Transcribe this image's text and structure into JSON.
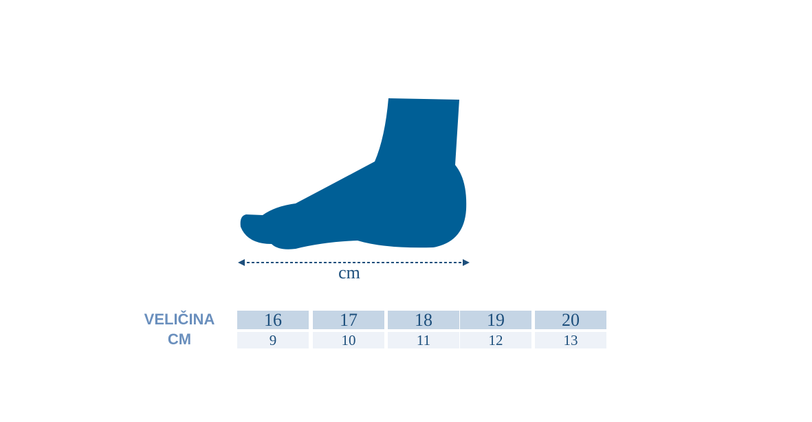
{
  "measure_label": "cm",
  "table": {
    "row_labels": [
      "VELIČINA",
      "CM"
    ],
    "rows": [
      [
        "16",
        "17",
        "18",
        "19",
        "20"
      ],
      [
        "9",
        "10",
        "11",
        "12",
        "13"
      ]
    ]
  }
}
